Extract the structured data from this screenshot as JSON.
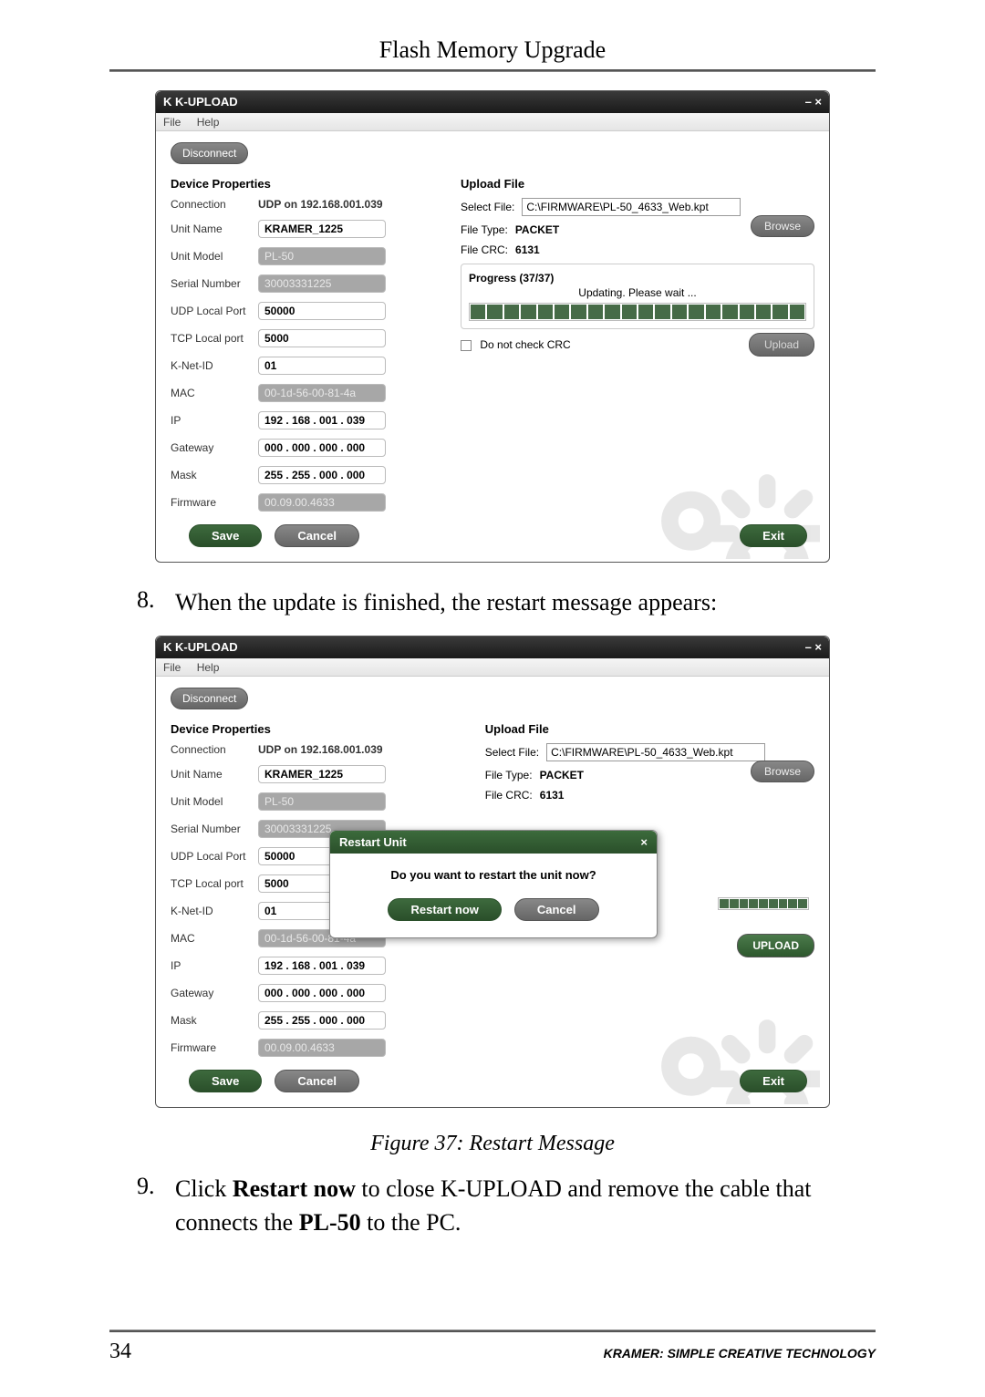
{
  "page": {
    "header": "Flash Memory Upgrade",
    "page_number": "34",
    "brand": "KRAMER:  SIMPLE CREATIVE TECHNOLOGY"
  },
  "shared_app": {
    "title": "K-UPLOAD",
    "logo_glyph": "K",
    "menu": {
      "file": "File",
      "help": "Help"
    },
    "disconnect": "Disconnect",
    "props_title": "Device Properties",
    "upload_title": "Upload File",
    "labels": {
      "connection": "Connection",
      "unit_name": "Unit Name",
      "unit_model": "Unit Model",
      "serial_number": "Serial Number",
      "udp_port": "UDP Local Port",
      "tcp_port": "TCP Local port",
      "knet": "K-Net-ID",
      "mac": "MAC",
      "ip": "IP",
      "gateway": "Gateway",
      "mask": "Mask",
      "firmware": "Firmware",
      "select_file": "Select File:",
      "file_type": "File Type:",
      "file_crc": "File CRC:",
      "do_not_crc": "Do not check CRC"
    },
    "values": {
      "connection": "UDP on 192.168.001.039",
      "unit_name": "KRAMER_1225",
      "unit_model": "PL-50",
      "serial_number": "30003331225",
      "udp_port": "50000",
      "tcp_port": "5000",
      "knet": "01",
      "mac": "00-1d-56-00-81-4a",
      "ip": "192 . 168 . 001 . 039",
      "gateway": "000 . 000 . 000 . 000",
      "mask": "255 . 255 . 000 . 000",
      "firmware": "00.09.00.4633",
      "select_file": "C:\\FIRMWARE\\PL-50_4633_Web.kpt",
      "file_type": "PACKET",
      "file_crc": "6131"
    },
    "buttons": {
      "browse": "Browse",
      "upload": "Upload",
      "upload_caps": "UPLOAD",
      "save": "Save",
      "cancel": "Cancel",
      "exit": "Exit"
    },
    "window_controls": "–  ×"
  },
  "screenshot1": {
    "progress_label": "Progress (37/37)",
    "updating": "Updating. Please wait ...",
    "segments_total": 20,
    "segments_filled": 20
  },
  "step8": {
    "num": "8.",
    "text": "When the update is finished, the restart message appears:"
  },
  "screenshot2": {
    "modal": {
      "title": "Restart Unit",
      "close": "×",
      "message": "Do you want to restart the unit now?",
      "restart_btn": "Restart now",
      "cancel_btn": "Cancel"
    },
    "small_prog_count": 9
  },
  "caption": "Figure 37: Restart Message",
  "step9": {
    "num": "9.",
    "text_pre": "Click ",
    "bold1": "Restart now",
    "text_mid": " to close K-UPLOAD and remove the cable that connects the ",
    "bold2": "PL-50",
    "text_post": " to the PC."
  },
  "colors": {
    "green_btn": "#2a4f2a",
    "grey_btn": "#666",
    "readonly_bg": "#a7a7a7",
    "progress_fill": "#466b47"
  }
}
